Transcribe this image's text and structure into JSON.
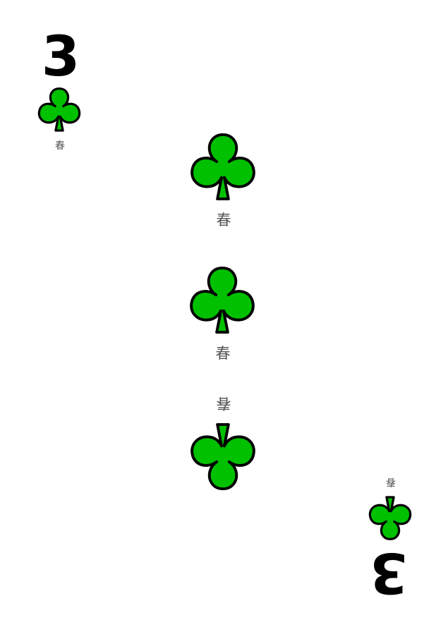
{
  "card": {
    "rank": "3",
    "suit_icon": "club-icon",
    "caption": "春",
    "colors": {
      "suit_fill": "#00c000",
      "suit_stroke": "#000000",
      "rank": "#000000",
      "caption": "#555555",
      "background": "#ffffff"
    }
  }
}
